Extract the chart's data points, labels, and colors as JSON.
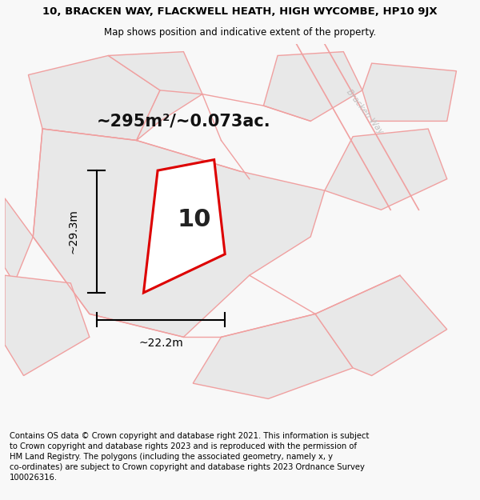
{
  "title_line1": "10, BRACKEN WAY, FLACKWELL HEATH, HIGH WYCOMBE, HP10 9JX",
  "title_line2": "Map shows position and indicative extent of the property.",
  "footer_text": "Contains OS data © Crown copyright and database right 2021. This information is subject\nto Crown copyright and database rights 2023 and is reproduced with the permission of\nHM Land Registry. The polygons (including the associated geometry, namely x, y\nco-ordinates) are subject to Crown copyright and database rights 2023 Ordnance Survey\n100026316.",
  "area_label": "~295m²/~0.073ac.",
  "number_label": "10",
  "dim_h": "~29.3m",
  "dim_w": "~22.2m",
  "road_label": "Bracken Way",
  "bg_color": "#f8f8f8",
  "map_bg": "#ffffff",
  "plot_fill": "#ffffff",
  "plot_stroke": "#dd0000",
  "neighbor_fill": "#e8e8e8",
  "neighbor_stroke": "#f0a0a0",
  "road_stroke": "#f0a0a0",
  "title_fontsize": 9.5,
  "subtitle_fontsize": 8.5,
  "footer_fontsize": 7.2,
  "area_fontsize": 15,
  "number_fontsize": 22,
  "dim_fontsize": 10,
  "road_label_fontsize": 7.5
}
